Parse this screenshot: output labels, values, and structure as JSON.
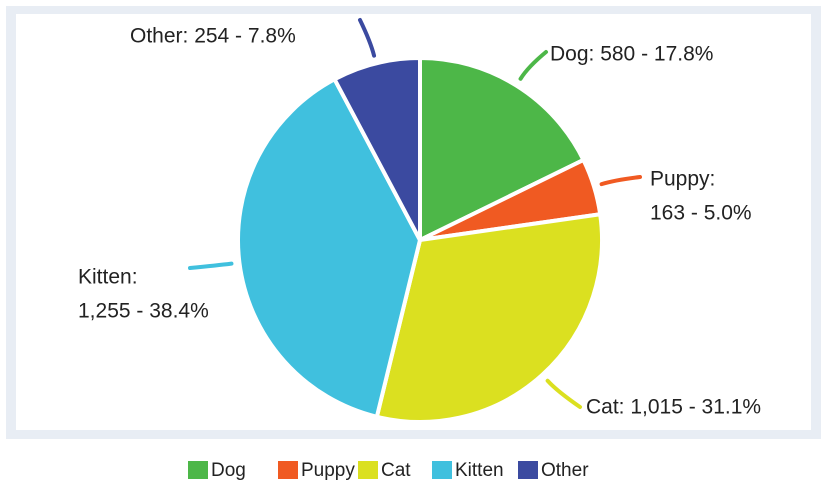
{
  "chart_data": {
    "type": "pie",
    "categories": [
      "Dog",
      "Puppy",
      "Cat",
      "Kitten",
      "Other"
    ],
    "values": [
      580,
      163,
      1015,
      1255,
      254
    ],
    "data_labels": [
      [
        "Dog: 580 - 17.8%"
      ],
      [
        "Puppy:",
        "163 - 5.0%"
      ],
      [
        "Cat: 1,015 - 31.1%"
      ],
      [
        "Kitten:",
        "1,255 - 38.4%"
      ],
      [
        "Other: 254 - 7.8%"
      ]
    ],
    "colors": [
      "#4db748",
      "#f05a22",
      "#dbe020",
      "#40c0de",
      "#3b4aa0"
    ],
    "legend": "bottom"
  }
}
